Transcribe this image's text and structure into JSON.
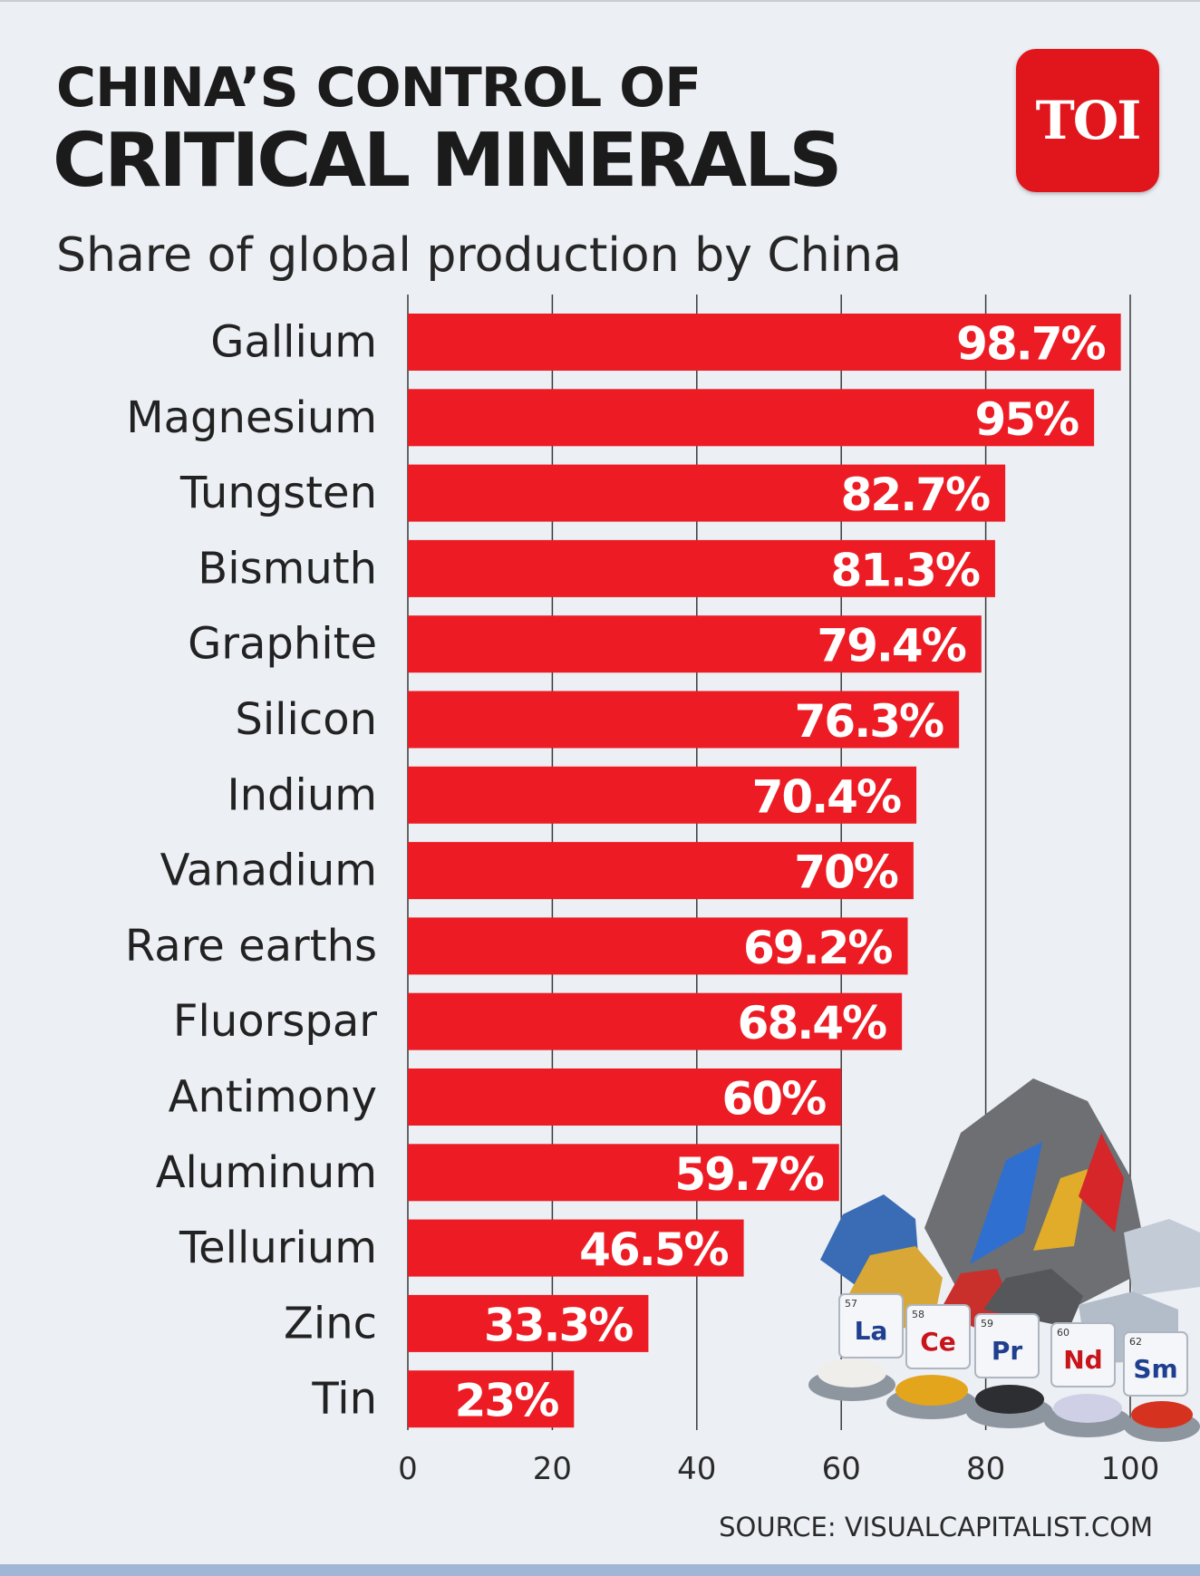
{
  "header": {
    "title_line1": "CHINA’S CONTROL OF",
    "title_line2": "CRITICAL MINERALS",
    "subtitle": "Share of global production by China",
    "logo_text": "TOI"
  },
  "footer": {
    "source": "SOURCE: VISUALCAPITALIST.COM"
  },
  "colors": {
    "bar": "#ed1c24",
    "logo": "#e0161c",
    "background": "#eceff4",
    "gridline": "#3a3a3a"
  },
  "chart_data": {
    "type": "bar",
    "orientation": "horizontal",
    "categories": [
      "Gallium",
      "Magnesium",
      "Tungsten",
      "Bismuth",
      "Graphite",
      "Silicon",
      "Indium",
      "Vanadium",
      "Rare earths",
      "Fluorspar",
      "Antimony",
      "Aluminum",
      "Tellurium",
      "Zinc",
      "Tin"
    ],
    "values": [
      98.7,
      95,
      82.7,
      81.3,
      79.4,
      76.3,
      70.4,
      70,
      69.2,
      68.4,
      60,
      59.7,
      46.5,
      33.3,
      23
    ],
    "data_labels": [
      "98.7%",
      "95%",
      "82.7%",
      "81.3%",
      "79.4%",
      "76.3%",
      "70.4%",
      "70%",
      "69.2%",
      "68.4%",
      "60%",
      "59.7%",
      "46.5%",
      "33.3%",
      "23%"
    ],
    "x_ticks": [
      0,
      20,
      40,
      60,
      80,
      100
    ],
    "x_tick_labels": [
      "0",
      "20",
      "40",
      "60",
      "80",
      "100"
    ],
    "xlim": [
      0,
      100
    ],
    "grid": true,
    "title": "CHINA’S CONTROL OF CRITICAL MINERALS",
    "subtitle": "Share of global production by China"
  },
  "illustration": {
    "element_tiles": [
      {
        "number": "57",
        "symbol": "La",
        "color": "#1f3f8f"
      },
      {
        "number": "58",
        "symbol": "Ce",
        "color": "#c8141b"
      },
      {
        "number": "59",
        "symbol": "Pr",
        "color": "#1f3f8f"
      },
      {
        "number": "60",
        "symbol": "Nd",
        "color": "#c8141b"
      },
      {
        "number": "62",
        "symbol": "Sm",
        "color": "#1f3f8f"
      }
    ]
  }
}
